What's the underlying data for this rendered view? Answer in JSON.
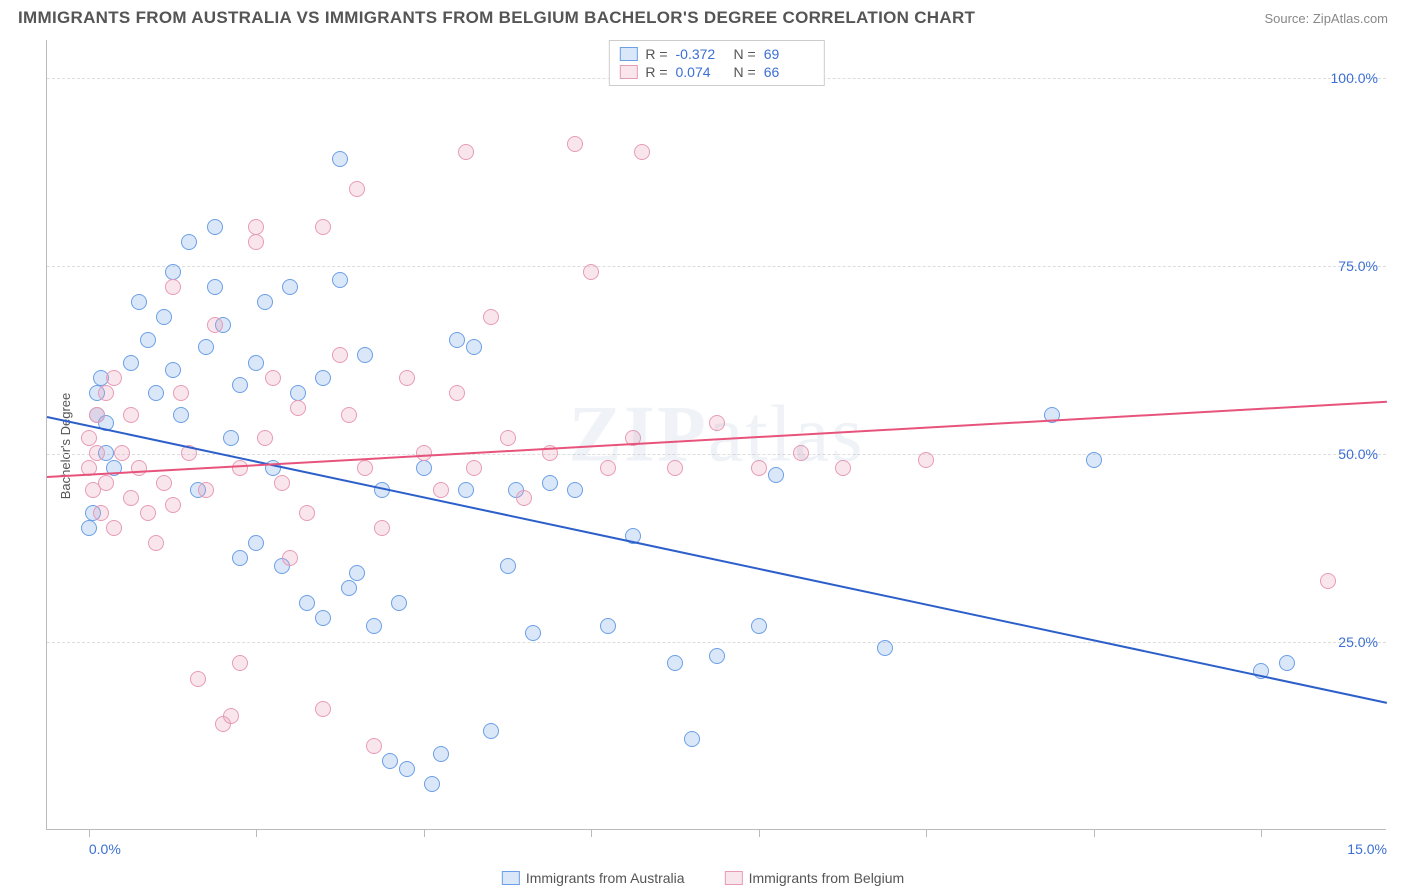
{
  "title": "IMMIGRANTS FROM AUSTRALIA VS IMMIGRANTS FROM BELGIUM BACHELOR'S DEGREE CORRELATION CHART",
  "source": "Source: ZipAtlas.com",
  "watermark_main": "ZIP",
  "watermark_sub": "atlas",
  "chart": {
    "type": "scatter",
    "ylabel": "Bachelor's Degree",
    "xlim": [
      -0.5,
      15.5
    ],
    "ylim": [
      0,
      105
    ],
    "ytick_positions": [
      25,
      50,
      75,
      100
    ],
    "ytick_labels": [
      "25.0%",
      "50.0%",
      "75.0%",
      "100.0%"
    ],
    "xtick_positions": [
      0,
      2,
      4,
      6,
      8,
      10,
      12,
      14
    ],
    "xtick_labels_shown": {
      "0": "0.0%",
      "15": "15.0%"
    },
    "grid_color": "#dddddd",
    "axis_color": "#bbbbbb",
    "background_color": "#ffffff",
    "marker_radius": 8,
    "marker_stroke_width": 1.5,
    "marker_fill_opacity": 0.25
  },
  "series": [
    {
      "name": "Immigrants from Australia",
      "color_stroke": "#6b9fe8",
      "color_fill": "rgba(107,159,232,0.25)",
      "R": "-0.372",
      "N": "69",
      "regression": {
        "x1": -0.5,
        "y1": 55,
        "x2": 15.5,
        "y2": 17,
        "color": "#2c5fc9",
        "width": 2
      },
      "points": [
        [
          0.0,
          40
        ],
        [
          0.05,
          42
        ],
        [
          0.1,
          55
        ],
        [
          0.1,
          58
        ],
        [
          0.15,
          60
        ],
        [
          0.2,
          50
        ],
        [
          0.2,
          54
        ],
        [
          0.3,
          48
        ],
        [
          0.5,
          62
        ],
        [
          0.6,
          70
        ],
        [
          0.7,
          65
        ],
        [
          0.8,
          58
        ],
        [
          0.9,
          68
        ],
        [
          1.0,
          74
        ],
        [
          1.0,
          61
        ],
        [
          1.1,
          55
        ],
        [
          1.2,
          78
        ],
        [
          1.3,
          45
        ],
        [
          1.4,
          64
        ],
        [
          1.5,
          72
        ],
        [
          1.5,
          80
        ],
        [
          1.6,
          67
        ],
        [
          1.7,
          52
        ],
        [
          1.8,
          59
        ],
        [
          1.8,
          36
        ],
        [
          2.0,
          62
        ],
        [
          2.0,
          38
        ],
        [
          2.1,
          70
        ],
        [
          2.2,
          48
        ],
        [
          2.3,
          35
        ],
        [
          2.4,
          72
        ],
        [
          2.5,
          58
        ],
        [
          2.6,
          30
        ],
        [
          2.8,
          60
        ],
        [
          2.8,
          28
        ],
        [
          3.0,
          89
        ],
        [
          3.0,
          73
        ],
        [
          3.1,
          32
        ],
        [
          3.2,
          34
        ],
        [
          3.3,
          63
        ],
        [
          3.4,
          27
        ],
        [
          3.5,
          45
        ],
        [
          3.6,
          9
        ],
        [
          3.7,
          30
        ],
        [
          3.8,
          8
        ],
        [
          4.0,
          48
        ],
        [
          4.1,
          6
        ],
        [
          4.2,
          10
        ],
        [
          4.4,
          65
        ],
        [
          4.5,
          45
        ],
        [
          4.6,
          64
        ],
        [
          4.8,
          13
        ],
        [
          5.0,
          35
        ],
        [
          5.1,
          45
        ],
        [
          5.3,
          26
        ],
        [
          5.5,
          46
        ],
        [
          5.8,
          45
        ],
        [
          6.2,
          27
        ],
        [
          6.5,
          39
        ],
        [
          7.0,
          22
        ],
        [
          7.2,
          12
        ],
        [
          7.5,
          23
        ],
        [
          8.0,
          27
        ],
        [
          8.2,
          47
        ],
        [
          9.5,
          24
        ],
        [
          11.5,
          55
        ],
        [
          12.0,
          49
        ],
        [
          14.0,
          21
        ],
        [
          14.3,
          22
        ]
      ]
    },
    {
      "name": "Immigrants from Belgium",
      "color_stroke": "#e89bb5",
      "color_fill": "rgba(232,155,181,0.25)",
      "R": "0.074",
      "N": "66",
      "regression": {
        "x1": -0.5,
        "y1": 47,
        "x2": 15.5,
        "y2": 57,
        "color": "#e8537b",
        "width": 2
      },
      "points": [
        [
          0.0,
          48
        ],
        [
          0.0,
          52
        ],
        [
          0.05,
          45
        ],
        [
          0.1,
          50
        ],
        [
          0.1,
          55
        ],
        [
          0.15,
          42
        ],
        [
          0.2,
          58
        ],
        [
          0.2,
          46
        ],
        [
          0.3,
          60
        ],
        [
          0.3,
          40
        ],
        [
          0.4,
          50
        ],
        [
          0.5,
          44
        ],
        [
          0.5,
          55
        ],
        [
          0.6,
          48
        ],
        [
          0.7,
          42
        ],
        [
          0.8,
          38
        ],
        [
          0.9,
          46
        ],
        [
          1.0,
          72
        ],
        [
          1.0,
          43
        ],
        [
          1.1,
          58
        ],
        [
          1.2,
          50
        ],
        [
          1.3,
          20
        ],
        [
          1.4,
          45
        ],
        [
          1.5,
          67
        ],
        [
          1.6,
          14
        ],
        [
          1.7,
          15
        ],
        [
          1.8,
          48
        ],
        [
          1.8,
          22
        ],
        [
          2.0,
          78
        ],
        [
          2.0,
          80
        ],
        [
          2.1,
          52
        ],
        [
          2.2,
          60
        ],
        [
          2.3,
          46
        ],
        [
          2.4,
          36
        ],
        [
          2.5,
          56
        ],
        [
          2.6,
          42
        ],
        [
          2.8,
          80
        ],
        [
          2.8,
          16
        ],
        [
          3.0,
          63
        ],
        [
          3.1,
          55
        ],
        [
          3.2,
          85
        ],
        [
          3.3,
          48
        ],
        [
          3.4,
          11
        ],
        [
          3.5,
          40
        ],
        [
          3.8,
          60
        ],
        [
          4.0,
          50
        ],
        [
          4.2,
          45
        ],
        [
          4.4,
          58
        ],
        [
          4.5,
          90
        ],
        [
          4.6,
          48
        ],
        [
          4.8,
          68
        ],
        [
          5.0,
          52
        ],
        [
          5.2,
          44
        ],
        [
          5.5,
          50
        ],
        [
          5.8,
          91
        ],
        [
          6.0,
          74
        ],
        [
          6.2,
          48
        ],
        [
          6.5,
          52
        ],
        [
          6.6,
          90
        ],
        [
          7.0,
          48
        ],
        [
          7.5,
          54
        ],
        [
          8.0,
          48
        ],
        [
          8.5,
          50
        ],
        [
          9.0,
          48
        ],
        [
          10.0,
          49
        ],
        [
          14.8,
          33
        ]
      ]
    }
  ],
  "stats_legend_labels": {
    "R": "R =",
    "N": "N ="
  },
  "bottom_legend_label_a": "Immigrants from Australia",
  "bottom_legend_label_b": "Immigrants from Belgium"
}
